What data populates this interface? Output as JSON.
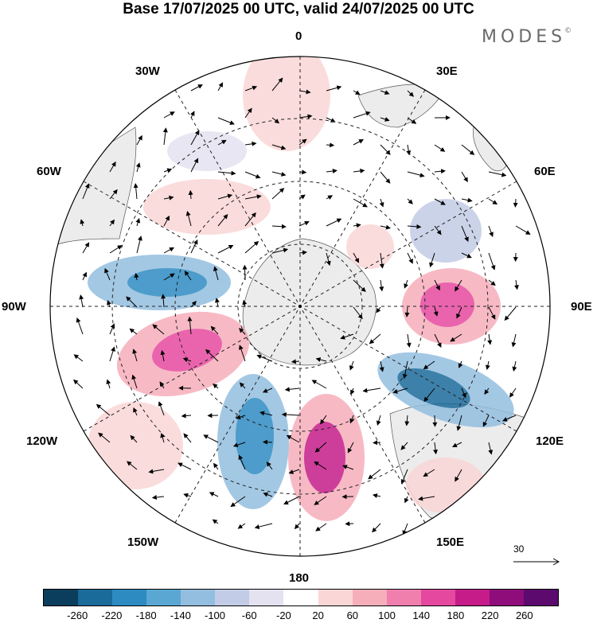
{
  "title": "Base 17/07/2025 00 UTC, valid 24/07/2025 00 UTC",
  "brand": {
    "name": "MODES",
    "mark": "©"
  },
  "longitude_labels": {
    "lon_0": "0",
    "lon_30e": "30E",
    "lon_60e": "60E",
    "lon_90e": "90E",
    "lon_120e": "120E",
    "lon_150e": "150E",
    "lon_180": "180",
    "lon_150w": "150W",
    "lon_120w": "120W",
    "lon_90w": "90W",
    "lon_60w": "60W",
    "lon_30w": "30W"
  },
  "vector_reference": {
    "label": "30"
  },
  "colorbar": {
    "colors": [
      "#0b3d5c",
      "#1a6a9a",
      "#2d8bc2",
      "#5aa7d3",
      "#93bedf",
      "#c2cce6",
      "#e4e2f0",
      "#ffffff",
      "#fbd6d6",
      "#f6aebb",
      "#f07fae",
      "#e5489f",
      "#c51c8a",
      "#8e0d7a",
      "#5c0a6e"
    ],
    "tick_labels": [
      "-260",
      "-220",
      "-180",
      "-140",
      "-100",
      "-60",
      "-20",
      "20",
      "60",
      "100",
      "140",
      "180",
      "220",
      "260"
    ]
  },
  "colors": {
    "land": "#ececec",
    "grid": "#222222",
    "outline": "#000000"
  }
}
